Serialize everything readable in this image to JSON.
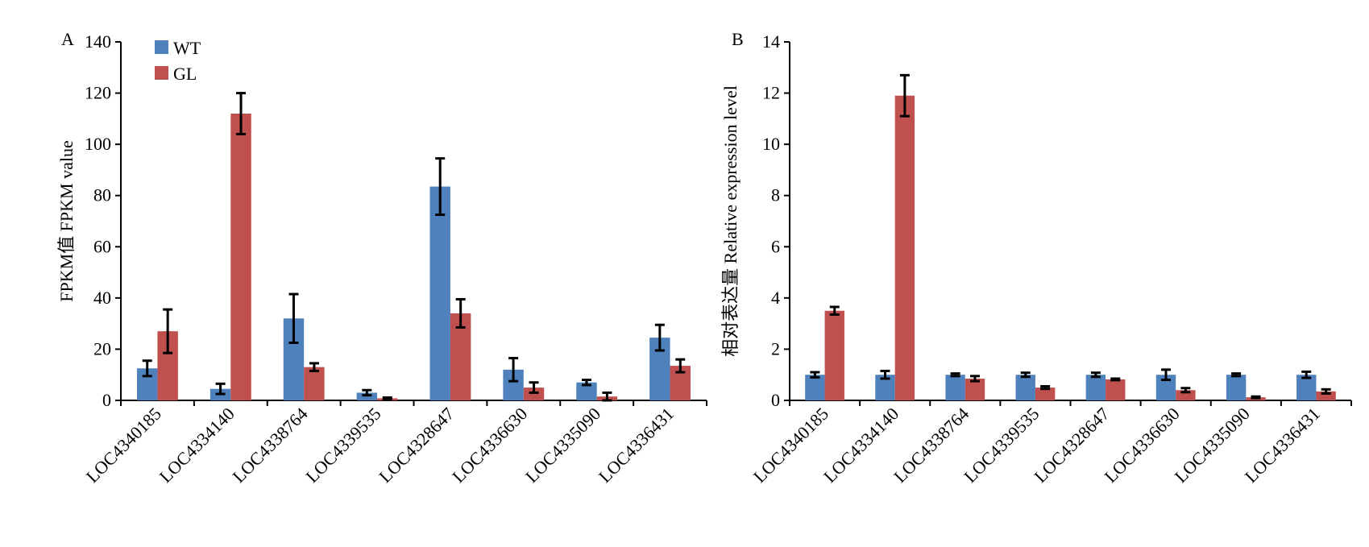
{
  "chart_data": [
    {
      "type": "bar",
      "panel_label": "A",
      "title": "",
      "xlabel": "",
      "ylabel": "FPKM值 FPKM value",
      "ylim": [
        0,
        140
      ],
      "yticks": [
        0,
        20,
        40,
        60,
        80,
        100,
        120,
        140
      ],
      "categories": [
        "LOC4340185",
        "LOC4334140",
        "LOC4338764",
        "LOC4339535",
        "LOC4328647",
        "LOC4336630",
        "LOC4335090",
        "LOC4336431"
      ],
      "series": [
        {
          "name": "WT",
          "color": "#4F81BD",
          "values": [
            12.5,
            4.5,
            32,
            3,
            83.5,
            12,
            7,
            24.5
          ],
          "errors": [
            3,
            2,
            9.5,
            1,
            11,
            4.5,
            1,
            5
          ]
        },
        {
          "name": "GL",
          "color": "#C0504D",
          "values": [
            27,
            112,
            13,
            0.8,
            34,
            5,
            1.5,
            13.5
          ],
          "errors": [
            8.5,
            8,
            1.5,
            0.3,
            5.5,
            2,
            1.5,
            2.5
          ]
        }
      ],
      "legend": {
        "position": "top-left",
        "entries": [
          "WT",
          "GL"
        ]
      }
    },
    {
      "type": "bar",
      "panel_label": "B",
      "title": "",
      "xlabel": "",
      "ylabel": "相对表达量 Relative expression level",
      "ylim": [
        0,
        14
      ],
      "yticks": [
        0,
        2,
        4,
        6,
        8,
        10,
        12,
        14
      ],
      "categories": [
        "LOC4340185",
        "LOC4334140",
        "LOC4338764",
        "LOC4339535",
        "LOC4328647",
        "LOC4336630",
        "LOC4335090",
        "LOC4336431"
      ],
      "series": [
        {
          "name": "WT",
          "color": "#4F81BD",
          "values": [
            1,
            1,
            1,
            1,
            1,
            1,
            1,
            1
          ],
          "errors": [
            0.1,
            0.15,
            0.05,
            0.08,
            0.08,
            0.2,
            0.05,
            0.12
          ]
        },
        {
          "name": "GL",
          "color": "#C0504D",
          "values": [
            3.5,
            11.9,
            0.85,
            0.5,
            0.82,
            0.4,
            0.12,
            0.35
          ],
          "errors": [
            0.15,
            0.8,
            0.1,
            0.05,
            0.03,
            0.08,
            0.03,
            0.08
          ]
        }
      ],
      "legend": null
    }
  ]
}
